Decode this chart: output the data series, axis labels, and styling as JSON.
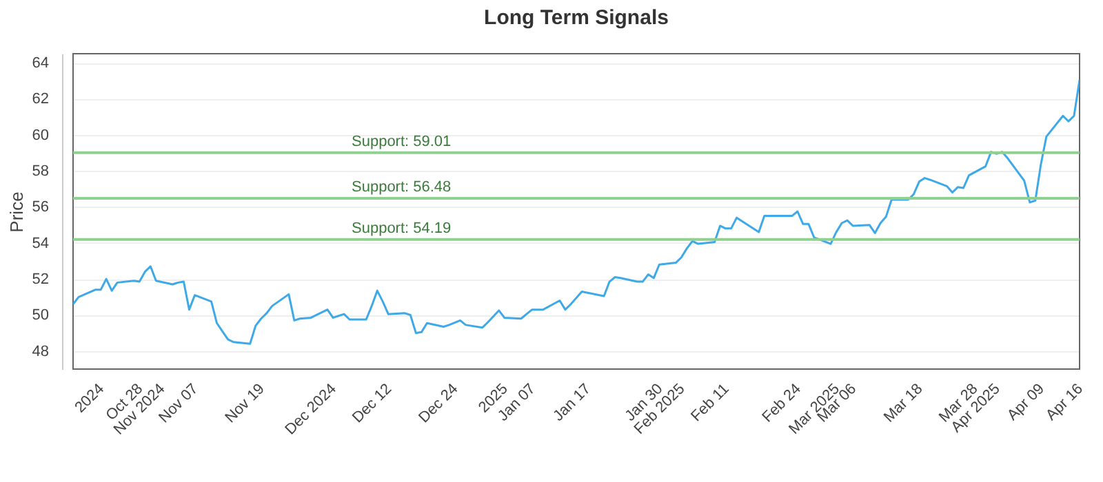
{
  "chart_data": {
    "type": "line",
    "title": "Long Term Signals",
    "ylabel": "Price",
    "x": [
      "2024-10-17",
      "2024-10-18",
      "2024-10-21",
      "2024-10-22",
      "2024-10-23",
      "2024-10-24",
      "2024-10-25",
      "2024-10-28",
      "2024-10-29",
      "2024-10-30",
      "2024-10-31",
      "2024-11-01",
      "2024-11-04",
      "2024-11-05",
      "2024-11-06",
      "2024-11-07",
      "2024-11-08",
      "2024-11-11",
      "2024-11-12",
      "2024-11-13",
      "2024-11-14",
      "2024-11-15",
      "2024-11-18",
      "2024-11-19",
      "2024-11-20",
      "2024-11-21",
      "2024-11-22",
      "2024-11-25",
      "2024-11-26",
      "2024-11-27",
      "2024-11-29",
      "2024-12-02",
      "2024-12-03",
      "2024-12-04",
      "2024-12-05",
      "2024-12-06",
      "2024-12-09",
      "2024-12-10",
      "2024-12-11",
      "2024-12-12",
      "2024-12-13",
      "2024-12-16",
      "2024-12-17",
      "2024-12-18",
      "2024-12-19",
      "2024-12-20",
      "2024-12-23",
      "2024-12-24",
      "2024-12-26",
      "2024-12-27",
      "2024-12-30",
      "2024-12-31",
      "2025-01-02",
      "2025-01-03",
      "2025-01-06",
      "2025-01-07",
      "2025-01-08",
      "2025-01-10",
      "2025-01-13",
      "2025-01-14",
      "2025-01-15",
      "2025-01-16",
      "2025-01-17",
      "2025-01-21",
      "2025-01-22",
      "2025-01-23",
      "2025-01-24",
      "2025-01-27",
      "2025-01-28",
      "2025-01-29",
      "2025-01-30",
      "2025-01-31",
      "2025-02-03",
      "2025-02-04",
      "2025-02-05",
      "2025-02-06",
      "2025-02-07",
      "2025-02-10",
      "2025-02-11",
      "2025-02-12",
      "2025-02-13",
      "2025-02-14",
      "2025-02-18",
      "2025-02-19",
      "2025-02-20",
      "2025-02-21",
      "2025-02-24",
      "2025-02-25",
      "2025-02-26",
      "2025-02-27",
      "2025-02-28",
      "2025-03-03",
      "2025-03-04",
      "2025-03-05",
      "2025-03-06",
      "2025-03-07",
      "2025-03-10",
      "2025-03-11",
      "2025-03-12",
      "2025-03-13",
      "2025-03-14",
      "2025-03-17",
      "2025-03-18",
      "2025-03-19",
      "2025-03-20",
      "2025-03-21",
      "2025-03-24",
      "2025-03-25",
      "2025-03-26",
      "2025-03-27",
      "2025-03-28",
      "2025-03-31",
      "2025-04-01",
      "2025-04-02",
      "2025-04-03",
      "2025-04-04",
      "2025-04-07",
      "2025-04-08",
      "2025-04-09",
      "2025-04-10",
      "2025-04-11",
      "2025-04-14",
      "2025-04-15",
      "2025-04-16",
      "2025-04-17"
    ],
    "series": [
      {
        "color": "#3fa9e8",
        "values": [
          50.6,
          51.0,
          51.4,
          51.4,
          52.0,
          51.35,
          51.8,
          51.9,
          51.85,
          52.4,
          52.7,
          51.9,
          51.7,
          51.8,
          51.85,
          50.3,
          51.1,
          50.75,
          49.55,
          49.1,
          48.65,
          48.5,
          48.4,
          49.4,
          49.8,
          50.1,
          50.5,
          51.15,
          49.7,
          49.8,
          49.85,
          50.3,
          49.85,
          49.95,
          50.05,
          49.75,
          49.75,
          50.5,
          51.35,
          50.75,
          50.05,
          50.1,
          50.0,
          49.0,
          49.05,
          49.55,
          49.35,
          49.45,
          49.7,
          49.45,
          49.3,
          49.6,
          50.25,
          49.85,
          49.8,
          50.05,
          50.3,
          50.3,
          50.8,
          50.3,
          50.6,
          50.95,
          51.3,
          51.05,
          51.85,
          52.1,
          52.05,
          51.85,
          51.85,
          52.25,
          52.05,
          52.8,
          52.9,
          53.2,
          53.7,
          54.1,
          53.95,
          54.05,
          54.95,
          54.8,
          54.8,
          55.4,
          54.6,
          55.5,
          55.5,
          55.5,
          55.5,
          55.75,
          55.05,
          55.05,
          54.3,
          53.95,
          54.6,
          55.1,
          55.25,
          54.95,
          55.0,
          54.55,
          55.1,
          55.45,
          56.4,
          56.4,
          56.7,
          57.4,
          57.6,
          57.5,
          57.15,
          56.8,
          57.1,
          57.05,
          57.75,
          58.25,
          59.05,
          58.95,
          59.05,
          58.7,
          57.45,
          56.25,
          56.35,
          58.35,
          59.9,
          61.05,
          60.75,
          61.05,
          63.05
        ]
      }
    ],
    "xlim": [
      "2024-10-17",
      "2025-04-17"
    ],
    "xticks": [
      {
        "value": "2024-10-21",
        "label": "2024"
      },
      {
        "value": "2024-10-28",
        "label": "Oct 28"
      },
      {
        "value": "2024-11-01",
        "label": "Nov 2024"
      },
      {
        "value": "2024-11-07",
        "label": "Nov 07"
      },
      {
        "value": "2024-11-19",
        "label": "Nov 19"
      },
      {
        "value": "2024-12-02",
        "label": "Dec 2024"
      },
      {
        "value": "2024-12-12",
        "label": "Dec 12"
      },
      {
        "value": "2024-12-24",
        "label": "Dec 24"
      },
      {
        "value": "2025-01-02",
        "label": "2025"
      },
      {
        "value": "2025-01-07",
        "label": "Jan 07"
      },
      {
        "value": "2025-01-17",
        "label": "Jan 17"
      },
      {
        "value": "2025-01-30",
        "label": "Jan 30"
      },
      {
        "value": "2025-02-03",
        "label": "Feb 2025"
      },
      {
        "value": "2025-02-11",
        "label": "Feb 11"
      },
      {
        "value": "2025-02-24",
        "label": "Feb 24"
      },
      {
        "value": "2025-03-03",
        "label": "Mar 2025"
      },
      {
        "value": "2025-03-06",
        "label": "Mar 06"
      },
      {
        "value": "2025-03-18",
        "label": "Mar 18"
      },
      {
        "value": "2025-03-28",
        "label": "Mar 28"
      },
      {
        "value": "2025-04-01",
        "label": "Apr 2025"
      },
      {
        "value": "2025-04-09",
        "label": "Apr 09"
      },
      {
        "value": "2025-04-16",
        "label": "Apr 16"
      }
    ],
    "ylim": [
      47,
      64.5
    ],
    "yticks": [
      48,
      50,
      52,
      54,
      56,
      58,
      60,
      62,
      64
    ],
    "grid": "y",
    "ref_lines": [
      {
        "axis": "y",
        "value": 59.01,
        "label": "Support: 59.01",
        "color": "#90d090"
      },
      {
        "axis": "y",
        "value": 56.48,
        "label": "Support: 56.48",
        "color": "#90d090"
      },
      {
        "axis": "y",
        "value": 54.19,
        "label": "Support: 54.19",
        "color": "#90d090"
      }
    ]
  }
}
